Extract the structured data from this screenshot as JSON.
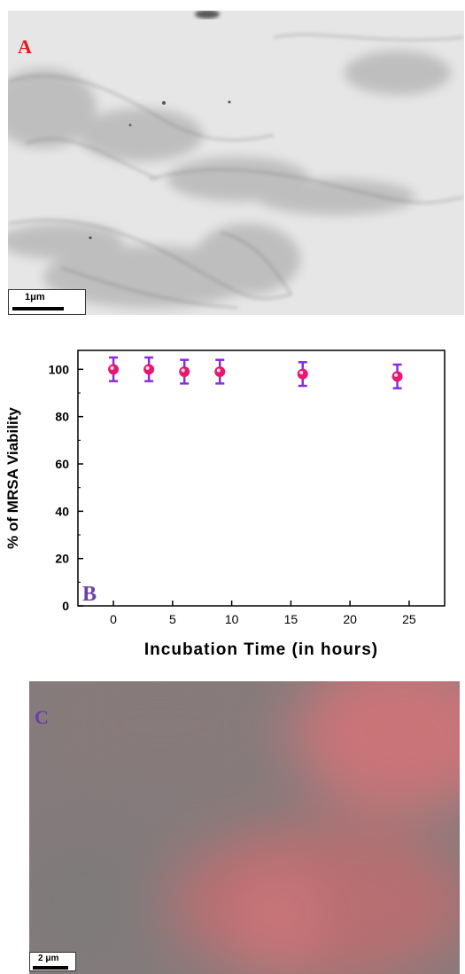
{
  "panels": {
    "a": {
      "letter": "A",
      "scale_label": "1μm"
    },
    "b": {
      "letter": "B"
    },
    "c": {
      "letter": "C",
      "scale_label": "2 μm"
    }
  },
  "chart_data": {
    "type": "scatter",
    "xlabel": "Incubation Time (in hours)",
    "ylabel": "% of MRSA Viability",
    "xlim": [
      -3,
      28
    ],
    "ylim": [
      0,
      108
    ],
    "xticks": [
      0,
      5,
      10,
      15,
      20,
      25
    ],
    "yticks": [
      0,
      20,
      40,
      60,
      80,
      100
    ],
    "grid": false,
    "series": [
      {
        "x": [
          0,
          3,
          6,
          9,
          16,
          24
        ],
        "y": [
          100,
          100,
          99,
          99,
          98,
          97
        ],
        "error": [
          5,
          5,
          5,
          5,
          5,
          5
        ],
        "marker_color": "#e8186f",
        "error_color": "#8a2be2"
      }
    ]
  }
}
